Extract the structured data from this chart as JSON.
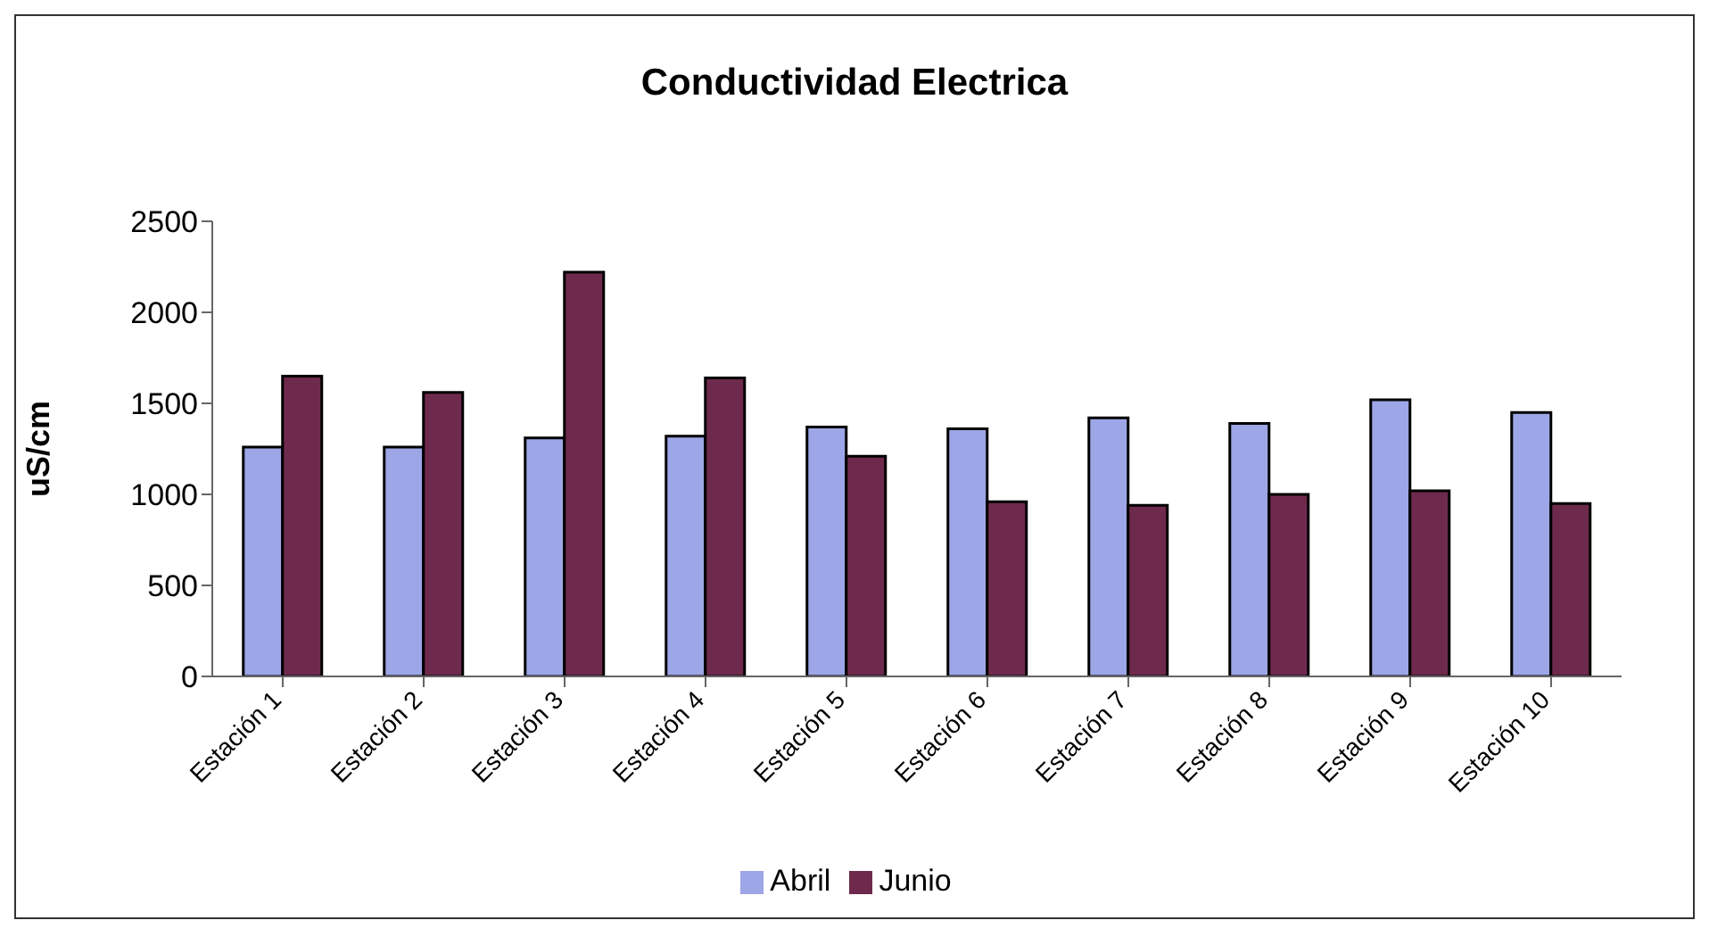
{
  "chart_data": {
    "type": "bar",
    "title": "Conductividad Electrica",
    "ylabel": "uS/cm",
    "categories": [
      "Estación 1",
      "Estación 2",
      "Estación 3",
      "Estación 4",
      "Estación 5",
      "Estación 6",
      "Estación 7",
      "Estación 8",
      "Estación 9",
      "Estación 10"
    ],
    "series": [
      {
        "name": "Abril",
        "color": "#9da6e6",
        "values": [
          1260,
          1260,
          1310,
          1320,
          1370,
          1360,
          1420,
          1390,
          1520,
          1450
        ]
      },
      {
        "name": "Junio",
        "color": "#6e2a4c",
        "values": [
          1650,
          1560,
          2220,
          1640,
          1210,
          960,
          940,
          1000,
          1020,
          950
        ]
      }
    ],
    "ylim": [
      0,
      2500
    ],
    "yticks": [
      0,
      500,
      1000,
      1500,
      2000,
      2500
    ],
    "grid": false,
    "legend": "bottom"
  }
}
